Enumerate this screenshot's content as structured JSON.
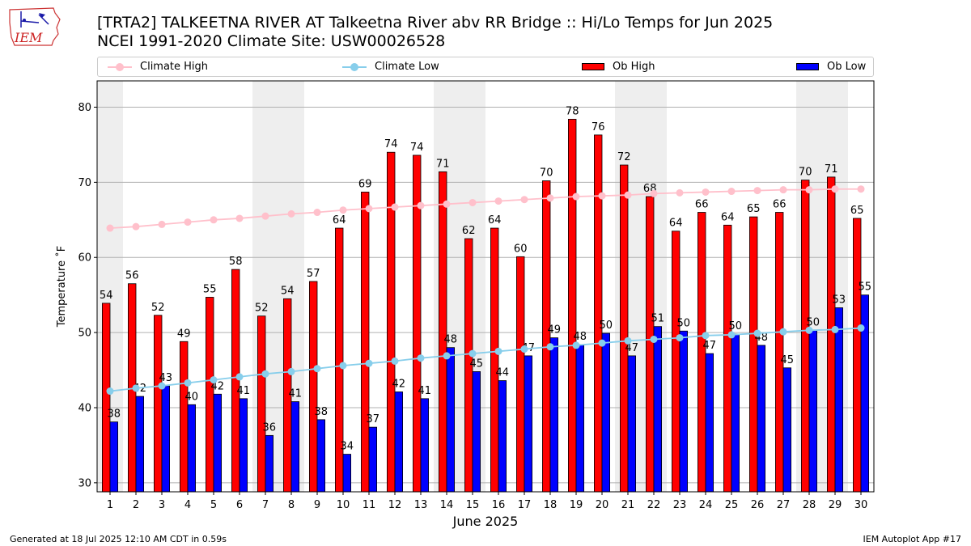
{
  "header": {
    "title_line1": "[TRTA2] TALKEETNA RIVER  AT Talkeetna River abv RR Bridge :: Hi/Lo Temps for Jun 2025",
    "title_line2": "NCEI 1991-2020 Climate Site: USW00026528",
    "logo_text": "IEM"
  },
  "legend": {
    "climate_high": "Climate High",
    "climate_low": "Climate Low",
    "ob_high": "Ob High",
    "ob_low": "Ob Low",
    "placement": "top, above plot"
  },
  "footer": {
    "generated": "Generated at 18 Jul 2025 12:10 AM CDT in 0.59s",
    "app": "IEM Autoplot App #17"
  },
  "colors": {
    "ob_high": "#ff0000",
    "ob_low": "#0000ff",
    "climate_high": "#ffc0cb",
    "climate_low": "#87ceeb",
    "weekend_shade": "#eeeeee",
    "grid": "#b0b0b0"
  },
  "chart_data": {
    "type": "bar",
    "xlabel": "June 2025",
    "ylabel": "Temperature $^\\circ$F",
    "ylabel_display": "Temperature ˚F",
    "ylim": [
      28.8,
      83.5
    ],
    "yticks": [
      30,
      40,
      50,
      60,
      70,
      80
    ],
    "grid": "horizontal",
    "categories": [
      "1",
      "2",
      "3",
      "4",
      "5",
      "6",
      "7",
      "8",
      "9",
      "10",
      "11",
      "12",
      "13",
      "14",
      "15",
      "16",
      "17",
      "18",
      "19",
      "20",
      "21",
      "22",
      "23",
      "24",
      "25",
      "26",
      "27",
      "28",
      "29",
      "30"
    ],
    "shaded_days": [
      1,
      7,
      8,
      14,
      15,
      21,
      22,
      28,
      29
    ],
    "series": [
      {
        "name": "Ob High",
        "kind": "bar",
        "values": [
          54,
          56,
          52,
          49,
          55,
          58,
          52,
          54,
          57,
          64,
          69,
          74,
          74,
          71,
          62,
          64,
          60,
          70,
          78,
          76,
          72,
          68,
          64,
          66,
          64,
          65,
          66,
          70,
          71,
          65
        ],
        "plotted": [
          53.9,
          56.5,
          52.3,
          48.8,
          54.7,
          58.4,
          52.2,
          54.5,
          56.8,
          63.9,
          68.7,
          74.0,
          73.6,
          71.4,
          62.5,
          63.9,
          60.1,
          70.2,
          78.4,
          76.3,
          72.3,
          68.1,
          63.5,
          66.0,
          64.3,
          65.4,
          66.0,
          70.3,
          70.7,
          65.2
        ]
      },
      {
        "name": "Ob Low",
        "kind": "bar",
        "values": [
          38,
          42,
          43,
          40,
          42,
          41,
          36,
          41,
          38,
          34,
          37,
          42,
          41,
          48,
          45,
          44,
          47,
          49,
          48,
          50,
          47,
          51,
          50,
          47,
          50,
          48,
          45,
          50,
          53,
          55
        ],
        "plotted": [
          38.1,
          41.5,
          42.9,
          40.4,
          41.8,
          41.2,
          36.3,
          40.8,
          38.4,
          33.8,
          37.4,
          42.1,
          41.2,
          48.0,
          44.8,
          43.6,
          46.9,
          49.3,
          48.4,
          49.9,
          46.9,
          50.8,
          50.2,
          47.2,
          49.8,
          48.3,
          45.3,
          50.3,
          53.3,
          55.0
        ]
      },
      {
        "name": "Climate High",
        "kind": "line",
        "values": [
          63.9,
          64.1,
          64.4,
          64.7,
          65.0,
          65.2,
          65.5,
          65.8,
          66.0,
          66.3,
          66.5,
          66.7,
          66.9,
          67.1,
          67.3,
          67.5,
          67.7,
          67.9,
          68.1,
          68.2,
          68.3,
          68.5,
          68.6,
          68.7,
          68.8,
          68.9,
          69.0,
          69.0,
          69.1,
          69.1
        ]
      },
      {
        "name": "Climate Low",
        "kind": "line",
        "values": [
          42.2,
          42.6,
          42.9,
          43.3,
          43.7,
          44.1,
          44.5,
          44.8,
          45.2,
          45.6,
          45.9,
          46.2,
          46.6,
          46.9,
          47.2,
          47.5,
          47.8,
          48.1,
          48.3,
          48.6,
          48.9,
          49.1,
          49.3,
          49.6,
          49.7,
          49.9,
          50.1,
          50.3,
          50.4,
          50.6
        ]
      }
    ]
  }
}
